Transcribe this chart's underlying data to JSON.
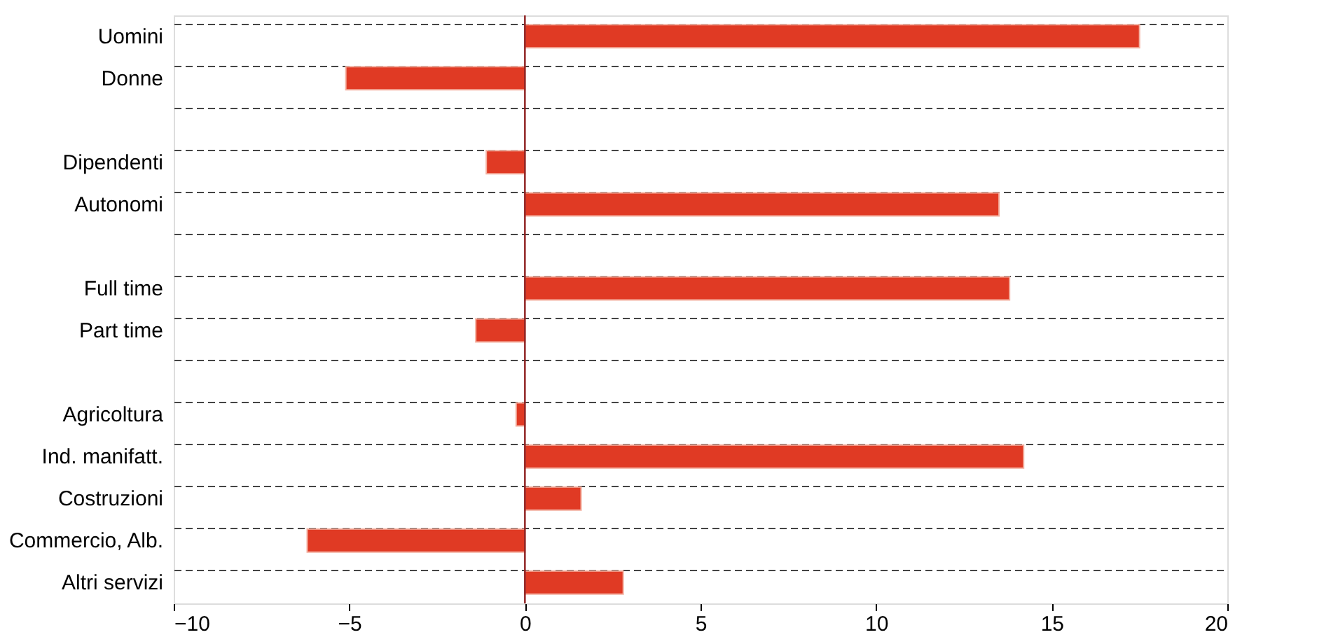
{
  "chart_data": {
    "type": "bar",
    "orientation": "horizontal",
    "categories": [
      "Uomini",
      "Donne",
      null,
      "Dipendenti",
      "Autonomi",
      null,
      "Full time",
      "Part time",
      null,
      "Agricoltura",
      "Ind. manifatt.",
      "Costruzioni",
      "Commercio, Alb.",
      "Altri servizi"
    ],
    "values": [
      17.5,
      -5.1,
      null,
      -1.1,
      13.5,
      null,
      13.8,
      -1.4,
      null,
      -0.25,
      14.2,
      1.6,
      -6.2,
      2.8
    ],
    "color": "#e03a24",
    "xlim": [
      -10,
      20
    ],
    "xticks": [
      -10,
      -5,
      0,
      5,
      10,
      15,
      20
    ],
    "grid": "y",
    "ref_lines": [
      {
        "axis": "x",
        "value": 0,
        "color": "#8b1a1a",
        "line_style": "solid"
      }
    ]
  }
}
